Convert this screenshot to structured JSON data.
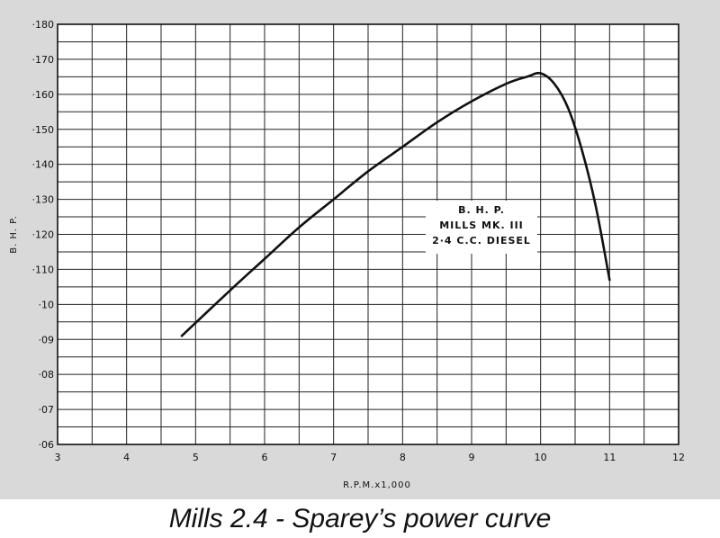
{
  "caption": "Mills 2.4 - Sparey’s power curve",
  "chart_data": {
    "type": "line",
    "xlabel": "R.P.M.x1,000",
    "ylabel": "B. H. P.",
    "xlim": [
      3,
      12
    ],
    "ylim": [
      0.06,
      0.18
    ],
    "x_ticks": [
      "3",
      "4",
      "5",
      "6",
      "7",
      "8",
      "9",
      "10",
      "11",
      "12"
    ],
    "y_ticks": [
      "·06",
      "·07",
      "·08",
      "·09",
      "·10",
      "·110",
      "·120",
      "·130",
      "·140",
      "·150",
      "·160",
      "·170",
      "·180"
    ],
    "grid": true,
    "annotation": [
      "B. H. P.",
      "MILLS  MK. III",
      "2·4  C.C. DIESEL"
    ],
    "series": [
      {
        "x": [
          4.8,
          5.5,
          6.0,
          6.5,
          7.0,
          7.5,
          8.0,
          8.5,
          9.0,
          9.5,
          9.8,
          10.0,
          10.2,
          10.4,
          10.6,
          10.8,
          11.0
        ],
        "y": [
          0.091,
          0.104,
          0.113,
          0.122,
          0.13,
          0.138,
          0.145,
          0.152,
          0.158,
          0.163,
          0.165,
          0.166,
          0.163,
          0.156,
          0.144,
          0.128,
          0.107
        ]
      }
    ]
  }
}
